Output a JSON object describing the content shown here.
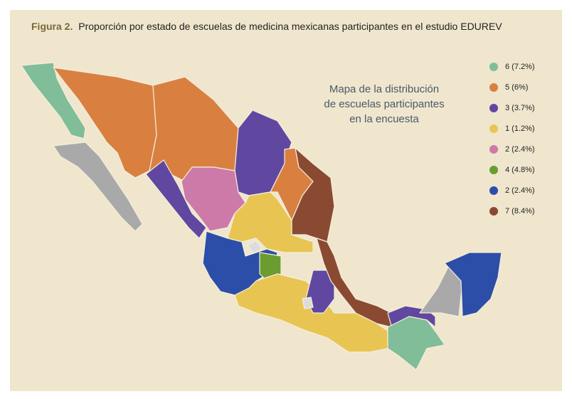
{
  "header": {
    "label": "Figura 2.",
    "title": "Proporción por estado de escuelas de medicina mexicanas participantes en el estudio EDUREV"
  },
  "annotation": [
    "Mapa de la distribución",
    "de escuelas participantes",
    "en la encuesta"
  ],
  "legend": [
    {
      "label": "6 (7.2%)",
      "color": "#80bd98"
    },
    {
      "label": "5 (6%)",
      "color": "#d98040"
    },
    {
      "label": "3 (3.7%)",
      "color": "#6048a0"
    },
    {
      "label": "1 (1.2%)",
      "color": "#e8c552"
    },
    {
      "label": "2 (2.4%)",
      "color": "#cd7aa8"
    },
    {
      "label": "4 (4.8%)",
      "color": "#6a9c30"
    },
    {
      "label": "2 (2.4%)",
      "color": "#2c4ea8"
    },
    {
      "label": "7 (8.4%)",
      "color": "#8a4a32"
    }
  ]
}
